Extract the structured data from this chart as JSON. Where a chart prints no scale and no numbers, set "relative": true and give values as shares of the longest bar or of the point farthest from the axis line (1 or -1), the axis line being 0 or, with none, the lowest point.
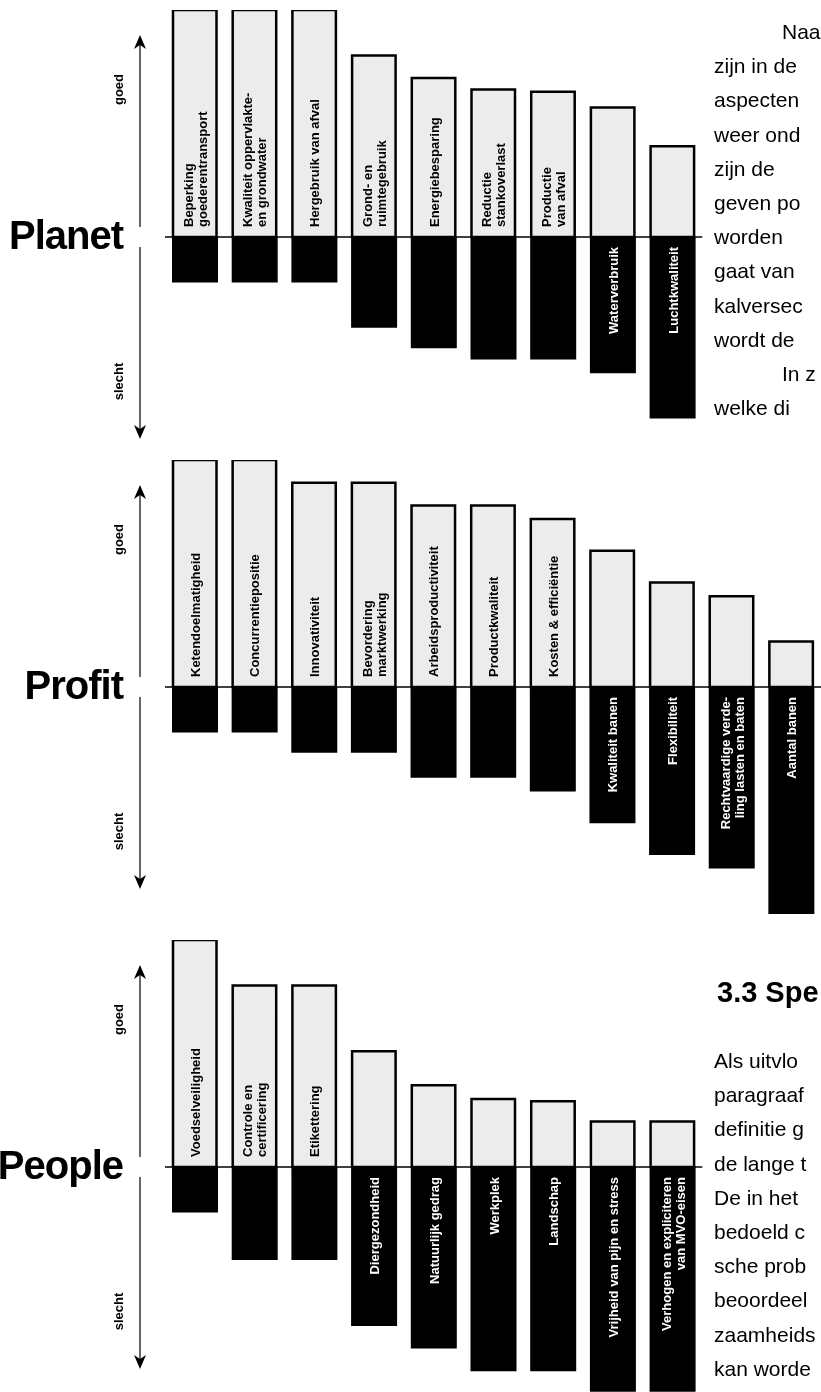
{
  "chart_data": [
    {
      "type": "bar",
      "title": "Planet",
      "relative": true,
      "categories": [
        "Beperking\ngoederentransport",
        "Kwaliteit oppervlakte-\nen grondwater",
        "Hergebruik van afval",
        "Grond- en\nruimtegebruik",
        "Energiebesparing",
        "Reductie\nstankoverlast",
        "Productie\nvan afval",
        "Waterverbruik",
        "Luchtkwaliteit"
      ],
      "series": [
        {
          "color": "#ececec",
          "values": [
            1,
            1,
            1,
            0.8,
            0.7,
            0.65,
            0.64,
            0.57,
            0.4
          ]
        },
        {
          "color": "#000000",
          "values": [
            -0.2,
            -0.2,
            -0.2,
            -0.4,
            -0.49,
            -0.54,
            -0.54,
            -0.6,
            -0.8
          ]
        }
      ],
      "annotations": [
        "goed",
        "slecht",
        "Naa",
        "zijn in de",
        "aspecten",
        "weer ond",
        "zijn de",
        "geven po",
        "worden",
        "gaat van",
        "kalversec",
        "wordt de",
        "In z",
        "welke di"
      ]
    },
    {
      "type": "bar",
      "title": "Profit",
      "relative": true,
      "categories": [
        "Ketendoelmatigheid",
        "Concurrentiepositie",
        "Innovativiteit",
        "Bevordering\nmarktwerking",
        "Arbeidsproductiviteit",
        "Productkwaliteit",
        "Kosten & efficiëntie",
        "Kwaliteit banen",
        "Flexibiliteit",
        "Rechtvaardige verde-\nling lasten en baten",
        "Aantal banen"
      ],
      "series": [
        {
          "color": "#ececec",
          "values": [
            1,
            1,
            0.9,
            0.9,
            0.8,
            0.8,
            0.74,
            0.6,
            0.46,
            0.4,
            0.2
          ]
        },
        {
          "color": "#000000",
          "values": [
            -0.2,
            -0.2,
            -0.29,
            -0.29,
            -0.4,
            -0.4,
            -0.46,
            -0.6,
            -0.74,
            -0.8,
            -1
          ]
        }
      ],
      "annotations": [
        "goed",
        "slecht"
      ]
    },
    {
      "type": "bar",
      "title": "People",
      "relative": true,
      "categories": [
        "Voedselveiligheid",
        "Controle en\ncertificering",
        "Etikettering",
        "Diergezondheid",
        "Natuurlijk gedrag",
        "Werkplek",
        "Landschap",
        "Vrijheid van pijn en stress",
        "Verhogen en expliciteren\nvan MVO-eisen"
      ],
      "series": [
        {
          "color": "#ececec",
          "values": [
            1,
            0.8,
            0.8,
            0.51,
            0.36,
            0.3,
            0.29,
            0.2,
            0.2
          ]
        },
        {
          "color": "#000000",
          "values": [
            -0.2,
            -0.41,
            -0.41,
            -0.7,
            -0.8,
            -0.9,
            -0.9,
            -0.99,
            -0.99
          ]
        }
      ],
      "annotations": [
        "goed",
        "slecht",
        "3.3 Spe",
        "Als uitvlo",
        "paragraaf",
        "definitie g",
        "de lange t",
        "De in het",
        "bedoeld c",
        "sche prob",
        "beoordeel",
        "zaamheids",
        "kan worde"
      ]
    }
  ]
}
